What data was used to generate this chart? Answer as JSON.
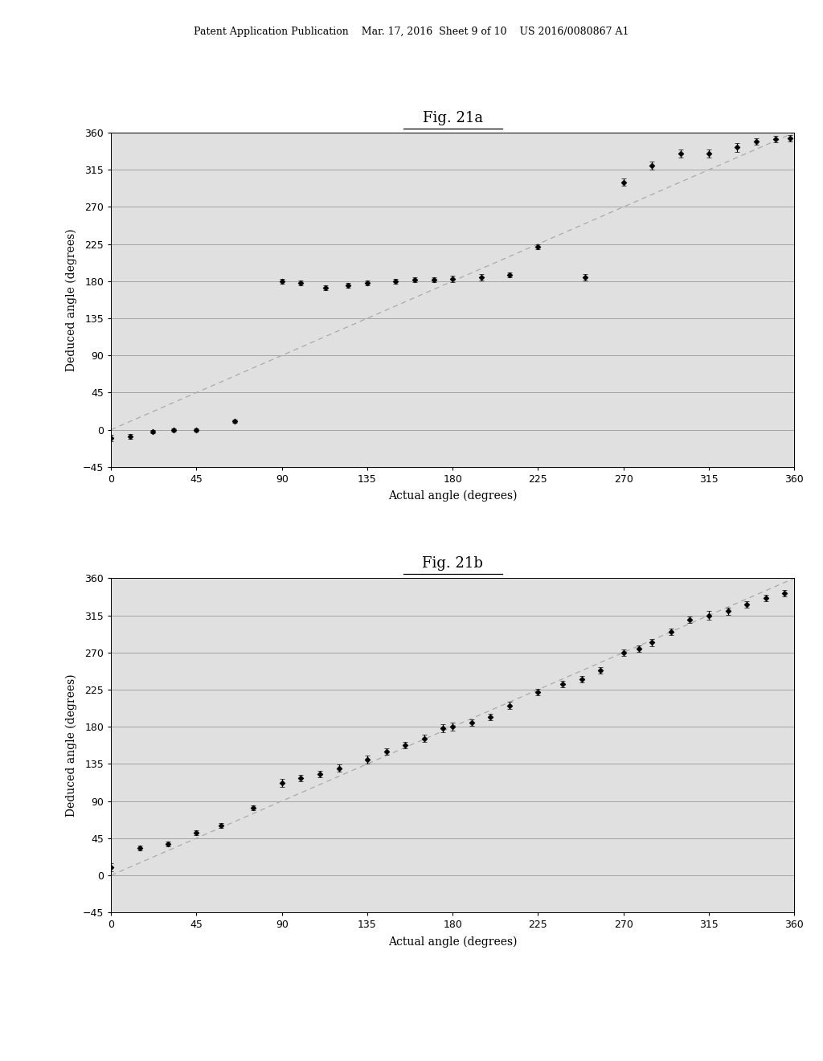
{
  "fig21a": {
    "title": "Fig. 21a",
    "xlabel": "Actual angle (degrees)",
    "ylabel": "Deduced angle (degrees)",
    "xlim": [
      0,
      360
    ],
    "ylim": [
      -45,
      360
    ],
    "xticks": [
      0,
      45,
      90,
      135,
      180,
      225,
      270,
      315,
      360
    ],
    "yticks": [
      -45,
      0,
      45,
      90,
      135,
      180,
      225,
      270,
      315,
      360
    ],
    "scatter_x": [
      0,
      10,
      22,
      33,
      45,
      65,
      90,
      100,
      113,
      125,
      135,
      150,
      160,
      170,
      180,
      195,
      210,
      225,
      250,
      270,
      285,
      300,
      315,
      330,
      340,
      350,
      358
    ],
    "scatter_y": [
      -10,
      -8,
      -2,
      0,
      0,
      10,
      180,
      178,
      172,
      175,
      178,
      180,
      182,
      182,
      183,
      185,
      188,
      222,
      185,
      300,
      320,
      335,
      335,
      342,
      349,
      352,
      353
    ],
    "scatter_yerr": [
      4,
      3,
      2,
      2,
      2,
      2,
      3,
      3,
      3,
      3,
      3,
      3,
      3,
      3,
      4,
      4,
      3,
      3,
      4,
      4,
      5,
      5,
      5,
      5,
      4,
      4,
      4
    ]
  },
  "fig21b": {
    "title": "Fig. 21b",
    "xlabel": "Actual angle (degrees)",
    "ylabel": "Deduced angle (degrees)",
    "xlim": [
      0,
      360
    ],
    "ylim": [
      -45,
      360
    ],
    "xticks": [
      0,
      45,
      90,
      135,
      180,
      225,
      270,
      315,
      360
    ],
    "yticks": [
      -45,
      0,
      45,
      90,
      135,
      180,
      225,
      270,
      315,
      360
    ],
    "scatter_x": [
      0,
      15,
      30,
      45,
      58,
      75,
      90,
      100,
      110,
      120,
      135,
      145,
      155,
      165,
      175,
      180,
      190,
      200,
      210,
      225,
      238,
      248,
      258,
      270,
      278,
      285,
      295,
      305,
      315,
      325,
      335,
      345,
      355
    ],
    "scatter_y": [
      10,
      33,
      38,
      52,
      60,
      82,
      112,
      118,
      123,
      130,
      140,
      150,
      158,
      166,
      178,
      180,
      185,
      192,
      206,
      222,
      232,
      238,
      248,
      270,
      275,
      282,
      295,
      310,
      315,
      320,
      328,
      336,
      342
    ],
    "scatter_yerr": [
      5,
      3,
      3,
      3,
      3,
      3,
      5,
      4,
      4,
      4,
      5,
      4,
      4,
      4,
      5,
      5,
      4,
      4,
      4,
      4,
      4,
      4,
      4,
      4,
      4,
      4,
      4,
      4,
      5,
      4,
      4,
      4,
      4
    ]
  },
  "page_background": "#ffffff",
  "plot_background": "#e0e0e0",
  "header_text": "Patent Application Publication    Mar. 17, 2016  Sheet 9 of 10    US 2016/0080867 A1",
  "marker_color": "#000000",
  "line_color": "#aaaaaa",
  "grid_color": "#999999",
  "marker_size": 3.5,
  "font_size_title": 13,
  "font_size_label": 10,
  "font_size_tick": 9,
  "font_size_header": 9
}
